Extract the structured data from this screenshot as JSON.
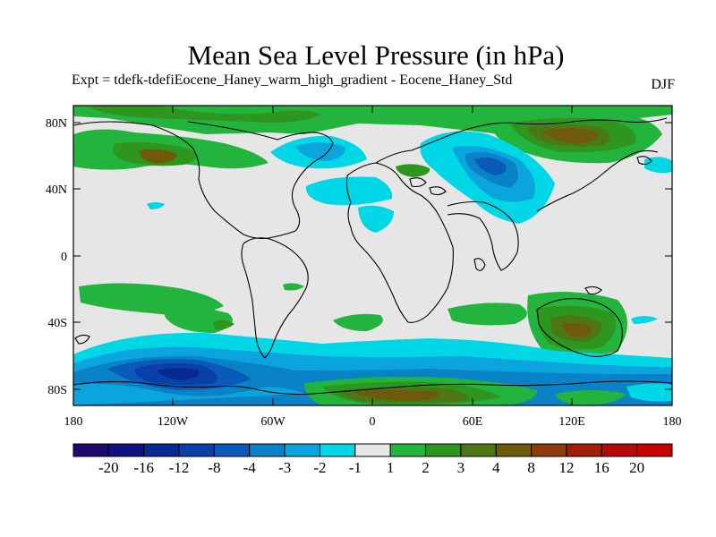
{
  "title": "Mean Sea Level Pressure (in hPa)",
  "subtitle": "Expt = tdefk-tdefiEocene_Haney_warm_high_gradient - Eocene_Haney_Std",
  "season": "DJF",
  "map": {
    "lat_ticks": [
      "80N",
      "40N",
      "0",
      "40S",
      "80S"
    ],
    "lon_ticks": [
      "180",
      "120W",
      "60W",
      "0",
      "60E",
      "120E",
      "180"
    ],
    "lon_range": [
      -180,
      180
    ],
    "lat_range": [
      -90,
      90
    ],
    "background_color": "#e6e6e6"
  },
  "colorbar": {
    "labels": [
      "-20",
      "-16",
      "-12",
      "-8",
      "-4",
      "-3",
      "-2",
      "-1",
      "1",
      "2",
      "3",
      "4",
      "8",
      "12",
      "16",
      "20"
    ],
    "colors": [
      "#1e0a6e",
      "#10127f",
      "#082892",
      "#0a41a8",
      "#0a5ab9",
      "#0a82c8",
      "#0aa5dc",
      "#00d7e6",
      "#e6e6e6",
      "#22b43c",
      "#2e961e",
      "#4b7814",
      "#6e5a0a",
      "#8c3c0a",
      "#a01e0a",
      "#b40a0a",
      "#c80000"
    ]
  }
}
